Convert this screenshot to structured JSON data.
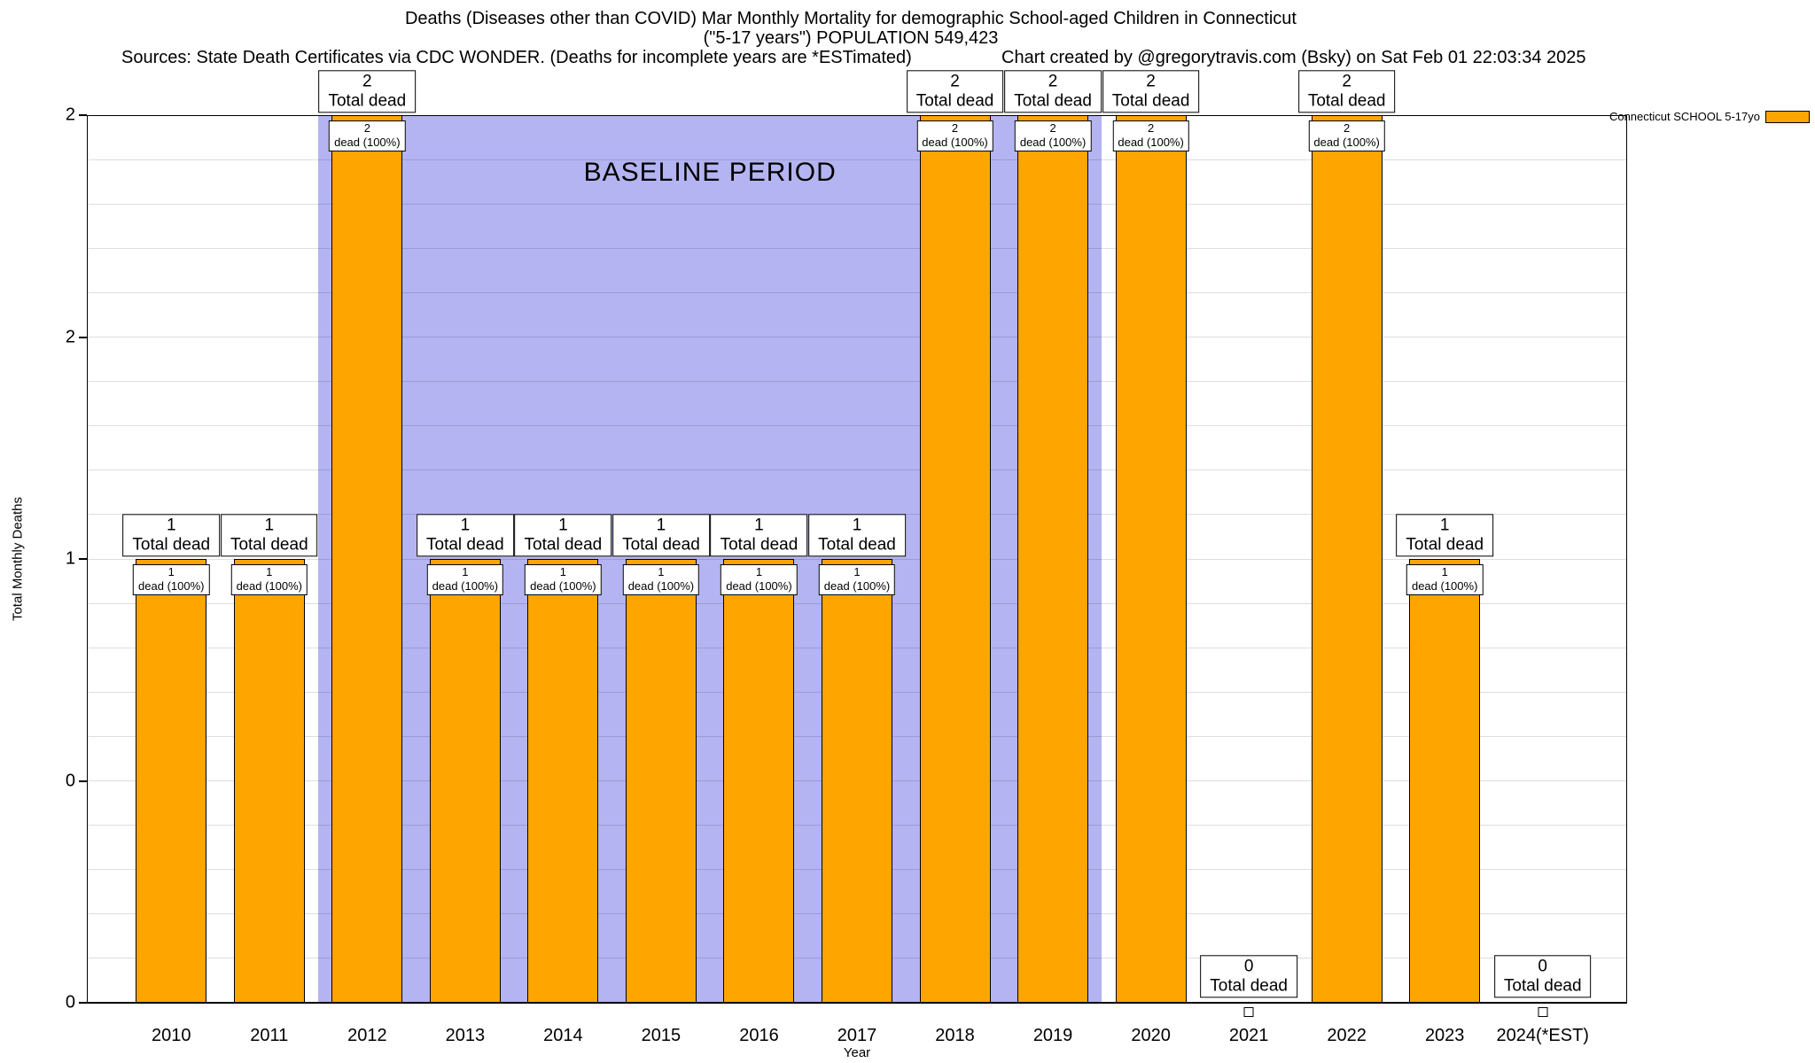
{
  "header": {
    "title_line1": "Deaths (Diseases other than COVID) Mar Monthly Mortality for demographic School-aged Children in Connecticut",
    "title_line2": "(\"5-17 years\") POPULATION 549,423",
    "sources": "Sources: State Death Certificates via CDC WONDER. (Deaths for incomplete years are *ESTimated)",
    "credit": "Chart created by @gregorytravis.com (Bsky) on Sat Feb 01 22:03:34 2025"
  },
  "legend": {
    "label": "Connecticut SCHOOL 5-17yo",
    "swatch_color": "#FFA500"
  },
  "chart_data": {
    "type": "bar",
    "title": "Deaths (Diseases other than COVID) Mar Monthly Mortality for demographic School-aged Children in Connecticut (\"5-17 years\") POPULATION 549,423",
    "xlabel": "Year",
    "ylabel": "Total Monthly Deaths",
    "categories": [
      "2010",
      "2011",
      "2012",
      "2013",
      "2014",
      "2015",
      "2016",
      "2017",
      "2018",
      "2019",
      "2020",
      "2021",
      "2022",
      "2023",
      "2024(*EST)"
    ],
    "values": [
      1,
      1,
      2,
      1,
      1,
      1,
      1,
      1,
      2,
      2,
      2,
      0,
      2,
      1,
      0
    ],
    "bar_color": "#FFA500",
    "bar_border_color": "#000000",
    "ylim": [
      0,
      2
    ],
    "yticks": [
      {
        "value": 0,
        "label": "0"
      },
      {
        "value": 0.5,
        "label": "0"
      },
      {
        "value": 1,
        "label": "1"
      },
      {
        "value": 1.5,
        "label": "2"
      },
      {
        "value": 2,
        "label": "2"
      }
    ],
    "grid": {
      "horizontal": true,
      "minor_step": 0.1,
      "color": "rgba(0,0,0,0.13)"
    },
    "baseline_band": {
      "label": "BASELINE PERIOD",
      "start_category": "2012",
      "end_category": "2019",
      "color": "#b4b4f2"
    },
    "bar_annotations": {
      "above_suffix": "Total dead",
      "inside_suffix": "dead (100%)"
    },
    "legend_position": "top-right"
  }
}
